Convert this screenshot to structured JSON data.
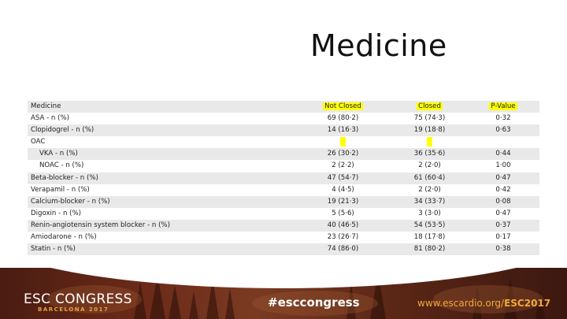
{
  "title": "Medicine",
  "table": {
    "header": {
      "label": "Medicine",
      "not_closed": "Not Closed",
      "closed": "Closed",
      "p_value": "P-Value"
    },
    "rows": [
      {
        "label": "ASA - n (%)",
        "not_closed": "69 (80·2)",
        "closed": "75 (74·3)",
        "p_value": "0·32",
        "indent": false
      },
      {
        "label": "Clopidogrel - n (%)",
        "not_closed": "14 (16·3)",
        "closed": "19 (18·8)",
        "p_value": "0·63",
        "indent": false
      },
      {
        "label": "OAC",
        "not_closed": "",
        "closed": "",
        "p_value": "",
        "indent": false
      },
      {
        "label": "VKA - n (%)",
        "not_closed": "26 (30·2)",
        "closed": "36 (35·6)",
        "p_value": "0·44",
        "indent": true
      },
      {
        "label": "NOAC - n (%)",
        "not_closed": "2 (2·2)",
        "closed": "2 (2·0)",
        "p_value": "1·00",
        "indent": true
      },
      {
        "label": "Beta-blocker - n (%)",
        "not_closed": "47 (54·7)",
        "closed": "61 (60·4)",
        "p_value": "0·47",
        "indent": false
      },
      {
        "label": "Verapamil - n (%)",
        "not_closed": "4 (4·5)",
        "closed": "2 (2·0)",
        "p_value": "0·42",
        "indent": false
      },
      {
        "label": "Calcium-blocker - n (%)",
        "not_closed": "19 (21·3)",
        "closed": "34 (33·7)",
        "p_value": "0·08",
        "indent": false
      },
      {
        "label": "Digoxin - n (%)",
        "not_closed": "5 (5·6)",
        "closed": "3 (3·0)",
        "p_value": "0·47",
        "indent": false
      },
      {
        "label": "Renin-angiotensin system blocker - n (%)",
        "not_closed": "40 (46·5)",
        "closed": "54 (53·5)",
        "p_value": "0·37",
        "indent": false
      },
      {
        "label": "Amiodarone - n (%)",
        "not_closed": "23 (26·7)",
        "closed": "18 (17·8)",
        "p_value": "0·17",
        "indent": false
      },
      {
        "label": "Statin - n (%)",
        "not_closed": "74 (86·0)",
        "closed": "81 (80·2)",
        "p_value": "0·38",
        "indent": false
      }
    ]
  },
  "banner": {
    "congress": "ESC CONGRESS",
    "city": "BARCELONA 2017",
    "hashtag": "#esccongress",
    "url_prefix": "www.escardio.org/",
    "url_bold": "ESC2017"
  },
  "colors": {
    "highlight": "#ffff00",
    "row_alt": "#e9e9e9",
    "banner_accent": "#f0a93a"
  }
}
